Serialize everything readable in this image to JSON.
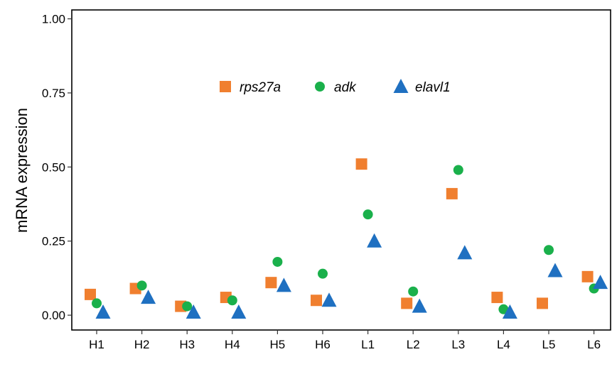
{
  "chart_data": {
    "type": "scatter",
    "title": "",
    "xlabel": "",
    "ylabel": "mRNA expression",
    "ylim": [
      -0.05,
      1.03
    ],
    "yticks": [
      "0.00",
      "0.25",
      "0.50",
      "0.75",
      "1.00"
    ],
    "ytick_values": [
      0,
      0.25,
      0.5,
      0.75,
      1.0
    ],
    "categories": [
      "H1",
      "H2",
      "H3",
      "H4",
      "H5",
      "H6",
      "L1",
      "L2",
      "L3",
      "L4",
      "L5",
      "L6"
    ],
    "grid": false,
    "legend_position": "top-center",
    "series": [
      {
        "name": "rps27a",
        "marker": "square",
        "color": "#f07f2f",
        "values": [
          0.07,
          0.09,
          0.03,
          0.06,
          0.11,
          0.05,
          0.51,
          0.04,
          0.41,
          0.06,
          0.04,
          0.13
        ]
      },
      {
        "name": "adk",
        "marker": "circle",
        "color": "#1ab04b",
        "values": [
          0.04,
          0.1,
          0.03,
          0.05,
          0.18,
          0.14,
          0.34,
          0.08,
          0.49,
          0.02,
          0.22,
          0.09
        ]
      },
      {
        "name": "elavl1",
        "marker": "triangle",
        "color": "#1f70c1",
        "values": [
          0.01,
          0.06,
          0.01,
          0.01,
          0.1,
          0.05,
          0.25,
          0.03,
          0.21,
          0.01,
          0.15,
          0.11
        ]
      }
    ]
  }
}
